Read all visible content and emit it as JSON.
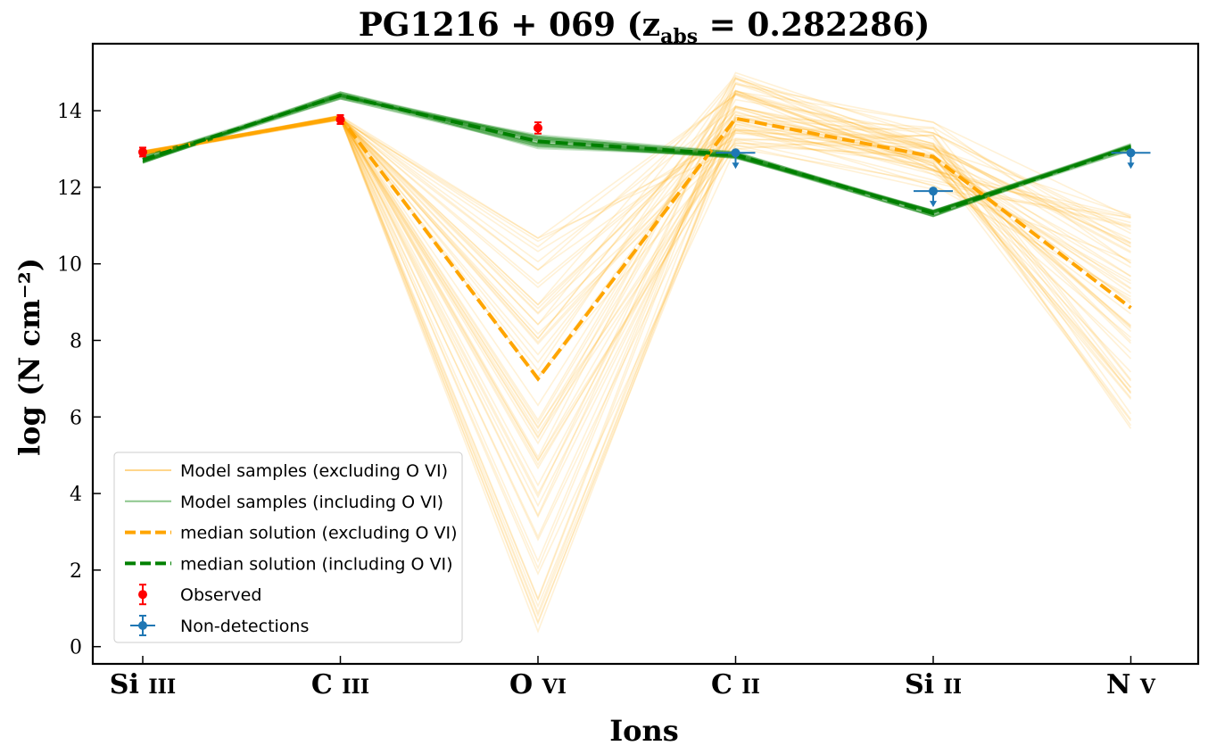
{
  "chart_data": {
    "type": "line",
    "title": "PG1216 + 069 (z_abs = 0.282286)",
    "title_parts": {
      "main": "PG1216 + 069 (z",
      "sub": "abs",
      "rest": " = 0.282286)"
    },
    "xlabel": "Ions",
    "ylabel": "log (N cm⁻²)",
    "ylim": [
      -0.45,
      15.75
    ],
    "yticks": [
      0,
      2,
      4,
      6,
      8,
      10,
      12,
      14
    ],
    "categories": [
      "Si III",
      "C III",
      "O VI",
      "C II",
      "Si II",
      "N V"
    ],
    "category_labels": [
      {
        "el": "Si",
        "st": "III"
      },
      {
        "el": "C",
        "st": "III"
      },
      {
        "el": "O",
        "st": "VI"
      },
      {
        "el": "C",
        "st": "II"
      },
      {
        "el": "Si",
        "st": "II"
      },
      {
        "el": "N",
        "st": "V"
      }
    ],
    "series": [
      {
        "name": "median solution (excluding O VI)",
        "style": "dashed",
        "color": "#ffa500",
        "values": [
          12.9,
          13.82,
          7.0,
          13.8,
          12.8,
          8.85
        ]
      },
      {
        "name": "median solution (including O VI)",
        "style": "dashed",
        "color": "#008000",
        "values": [
          12.72,
          14.4,
          13.2,
          12.85,
          11.32,
          13.05
        ]
      }
    ],
    "model_samples_excluding_ovi": {
      "color": "#ffa500",
      "ovi_range": [
        0.3,
        10.9
      ],
      "cii_range": [
        13.0,
        15.0
      ],
      "siii_range": [
        11.8,
        14.1
      ],
      "nv_range": [
        5.6,
        11.3
      ]
    },
    "model_samples_including_ovi": {
      "color": "#008000"
    },
    "observed": {
      "name": "Observed",
      "color": "#ff0000",
      "points": [
        {
          "category": "Si III",
          "y": 12.92,
          "yerr": 0.07
        },
        {
          "category": "C III",
          "y": 13.77,
          "yerr": 0.07
        },
        {
          "category": "O VI",
          "y": 13.55,
          "yerr": 0.1
        }
      ]
    },
    "non_detections": {
      "name": "Non-detections",
      "color": "#1f77b4",
      "points": [
        {
          "category": "C II",
          "y": 12.9
        },
        {
          "category": "Si II",
          "y": 11.9
        },
        {
          "category": "N V",
          "y": 12.9
        }
      ]
    },
    "legend": {
      "position": "lower-left",
      "entries": [
        {
          "label": "Model samples (excluding O VI)",
          "kind": "thin-line",
          "color": "#ffa500"
        },
        {
          "label": "Model samples (including O VI)",
          "kind": "thin-line",
          "color": "#008000"
        },
        {
          "label": "median solution (excluding O VI)",
          "kind": "dashed",
          "color": "#ffa500"
        },
        {
          "label": "median solution (including O VI)",
          "kind": "dashed",
          "color": "#008000"
        },
        {
          "label": "Observed",
          "kind": "errorpoint",
          "color": "#ff0000"
        },
        {
          "label": "Non-detections",
          "kind": "errorpoint-x",
          "color": "#1f77b4"
        }
      ]
    },
    "grid": false
  }
}
